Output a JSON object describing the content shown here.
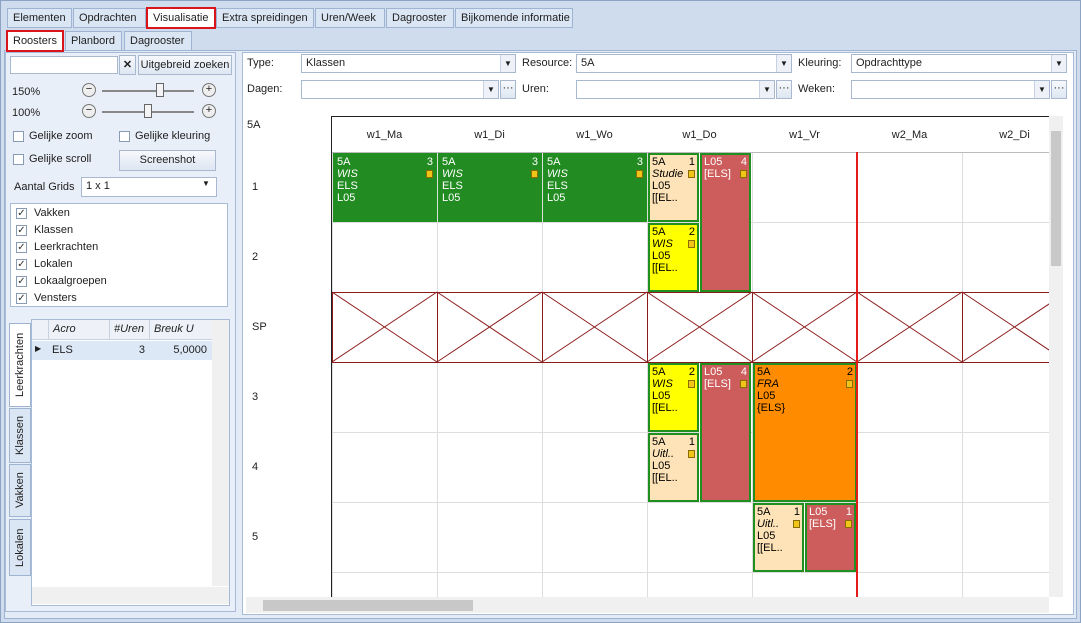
{
  "tabs": [
    "Elementen",
    "Opdrachten",
    "Visualisatie",
    "Extra spreidingen",
    "Uren/Week",
    "Dagrooster",
    "Bijkomende informatie"
  ],
  "subtabs": [
    "Roosters",
    "Planbord",
    "Dagrooster"
  ],
  "left": {
    "search_button": "Uitgebreid zoeken",
    "zoom": [
      "150%",
      "100%"
    ],
    "options": [
      "Gelijke zoom",
      "Gelijke kleuring",
      "Gelijke scroll"
    ],
    "screenshot": "Screenshot",
    "grids_label": "Aantal Grids",
    "grids_value": "1 x 1",
    "layers": [
      "Vakken",
      "Klassen",
      "Leerkrachten",
      "Lokalen",
      "Lokaalgroepen",
      "Vensters"
    ],
    "side_tabs": [
      "Leerkrachten",
      "Klassen",
      "Vakken",
      "Lokalen"
    ],
    "table": {
      "columns": [
        "Acro",
        "#Uren",
        "Breuk U"
      ],
      "rows": [
        [
          "ELS",
          3,
          "5,0000"
        ]
      ]
    }
  },
  "filters": {
    "type_label": "Type:",
    "type_value": "Klassen",
    "resource_label": "Resource:",
    "resource_value": "5A",
    "kleuring_label": "Kleuring:",
    "kleuring_value": "Opdrachttype",
    "dagen_label": "Dagen:",
    "uren_label": "Uren:",
    "weken_label": "Weken:"
  },
  "schedule": {
    "resource": "5A",
    "columns": [
      "w1_Ma",
      "w1_Di",
      "w1_Wo",
      "w1_Do",
      "w1_Vr",
      "w2_Ma",
      "w2_Di"
    ],
    "rows": [
      "1",
      "2",
      "SP",
      "3",
      "4",
      "5"
    ],
    "cards": [
      {
        "lines": [
          "5A",
          "WIS",
          "ELS",
          "L05"
        ],
        "count": 3
      },
      {
        "lines": [
          "5A",
          "WIS",
          "ELS",
          "L05"
        ],
        "count": 3
      },
      {
        "lines": [
          "5A",
          "WIS",
          "ELS",
          "L05"
        ],
        "count": 3
      },
      {
        "lines": [
          "5A",
          "Studie",
          "L05",
          "[[EL.."
        ],
        "count": 1
      },
      {
        "lines": [
          "L05",
          "[ELS]"
        ],
        "count": 4
      },
      {
        "lines": [
          "5A",
          "WIS",
          "L05",
          "[[EL.."
        ],
        "count": 2
      },
      {
        "lines": [
          "5A",
          "WIS",
          "L05",
          "[[EL.."
        ],
        "count": 2
      },
      {
        "lines": [
          "L05",
          "[ELS]"
        ],
        "count": 4
      },
      {
        "lines": [
          "5A",
          "FRA",
          "L05",
          "{ELS}"
        ],
        "count": 2
      },
      {
        "lines": [
          "5A",
          "Uitl..",
          "L05",
          "[[EL.."
        ],
        "count": 1
      },
      {
        "lines": [
          "5A",
          "Uitl..",
          "L05",
          "[[EL.."
        ],
        "count": 1
      },
      {
        "lines": [
          "L05",
          "[ELS]"
        ],
        "count": 1
      }
    ]
  }
}
